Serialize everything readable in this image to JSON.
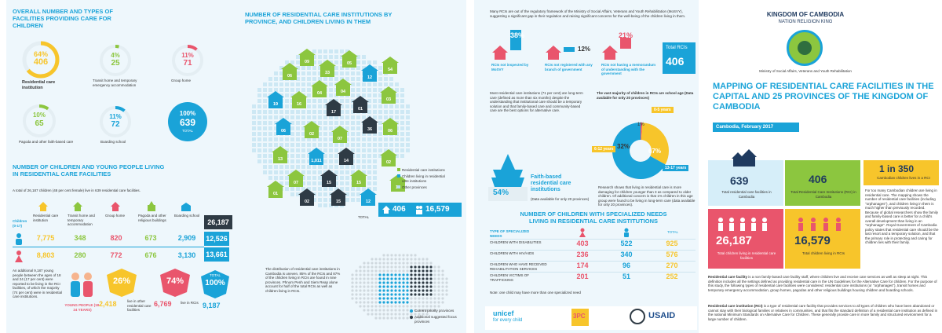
{
  "panel1": {
    "title_facilities": "OVERALL NUMBER AND TYPES OF FACILITIES PROVIDING CARE FOR CHILDREN",
    "rings": [
      {
        "pct": "64%",
        "value": "406",
        "label": "Residential care institution",
        "color": "#f7c52b",
        "fraction": 0.64
      },
      {
        "pct": "4%",
        "value": "25",
        "label": "Transit home and temporary emergency accommodation",
        "color": "#8cc63f",
        "fraction": 0.04
      },
      {
        "pct": "11%",
        "value": "71",
        "label": "Group home",
        "color": "#e9556c",
        "fraction": 0.11
      },
      {
        "pct": "10%",
        "value": "65",
        "label": "Pagoda and other faith-based care",
        "color": "#8cc63f",
        "fraction": 0.1
      },
      {
        "pct": "11%",
        "value": "72",
        "label": "Boarding school",
        "color": "#1aa3d8",
        "fraction": 0.11
      }
    ],
    "total_pct": "100%",
    "total_value": "639",
    "total_label": "TOTAL",
    "title_children": "NUMBER OF CHILDREN AND YOUNG PEOPLE LIVING IN RESIDENTIAL CARE FACILITIES",
    "intro": "A total of 26,187 children (48 per cent female) live in 639 residential care facilities.",
    "row_label_children": "Children (0-17)",
    "column_heads": [
      "Residential care institution",
      "Transit home and temporary accommodation",
      "Group home",
      "Pagoda and other religious buildings",
      "Boarding school"
    ],
    "row_boys": [
      "7,775",
      "348",
      "820",
      "673",
      "2,909"
    ],
    "row_girls": [
      "8,803",
      "280",
      "772",
      "676",
      "3,130"
    ],
    "boys_total": "12,526",
    "girls_total": "13,661",
    "grand_total": "26,187",
    "side_note": "An additional 9,187 young people between the ages of 18 and 24 (17 per cent) were reported to be living in the RCI facilities, of which the majority (74 per cent) were in residential care institutions.",
    "young_people_label": "YOUNG PEOPLE (18-24 YEARS)",
    "yp_pct_1": "26%",
    "yp_val_1": "2,418",
    "yp_lab_1": "live in other residential care facilities",
    "yp_pct_2": "74%",
    "yp_val_2": "6,769",
    "yp_lab_2": "live in RCIs",
    "yp_total_pct": "100%",
    "yp_total_val": "9,187",
    "yp_total_label": "TOTAL"
  },
  "panel2": {
    "title": "NUMBER OF RESIDENTIAL CARE INSTITUTIONS BY PROVINCE, AND CHILDREN LIVING IN THEM",
    "markers": [
      "09",
      "33",
      "06",
      "05",
      "12",
      "54",
      "04",
      "04",
      "19",
      "16",
      "17",
      "01",
      "03",
      "06",
      "02",
      "07",
      "36",
      "1,011",
      "14",
      "06",
      "13",
      "07",
      "15",
      "15",
      "02",
      "02",
      "15",
      "12",
      "13",
      "01"
    ],
    "legend": [
      "Residential care institutions",
      "Children living in residential care institutions",
      "Other provinces"
    ],
    "total_label": "TOTAL",
    "total_rci": "406",
    "total_children": "16,579",
    "note": "The distribution of residential care institutions in Cambodia is uneven. 85% of the RCIs and 87% of the children living in RCIs are found in nine provinces. Phnom Penh and Siem Reap alone account for half of the total RCIs as well as children living in RCIs.",
    "legend2": [
      "Current priority provinces",
      "Additional suggested focus provinces"
    ]
  },
  "panel3": {
    "intro": "Many RCIs are out of the regulatory framework of the Ministry of Social Affairs, Veterans and Youth Rehabilitation (MoSVY), suggesting a significant gap in their regulation and raising significant concerns for the well-being of the children living in them.",
    "stats": [
      {
        "pct": "38%",
        "label": "RCIs not inspected by MoSVY",
        "color": "#e9556c"
      },
      {
        "pct": "12%",
        "label": "RCIs not registered with any branch of government",
        "color": "#1aa3d8"
      },
      {
        "pct": "21%",
        "label": "RCIs not having a memorandum of understanding with the government",
        "color": "#e9556c"
      }
    ],
    "total_rci_label": "Total RCIs",
    "total_rci": "406",
    "text_block": "Most residential care institutions (71 per cent) are long-term care (defined as more than six months) despite the understanding that institutional care should be a temporary solution and that family-based care and community-based care are the best options for alternative care.",
    "age_title": "The vast majority of children in RCIs are school age (Data available for only 20 provinces)",
    "age_labels": [
      "0-5 years",
      "6-12 years",
      "13-17 years"
    ],
    "age_pcts": [
      "1%",
      "32%",
      "67%"
    ],
    "faith_title": "Faith-based residential care institutions",
    "faith_pct": "54%",
    "faith_sub": "(Data available for only 20 provinces)",
    "research": "Research shows that living in residential care is more damaging for children younger than 3 as compared to older children. Of additional concern is that 1% children in this age group were found to be living in long-term care (data available for only 20 provinces).",
    "needs_title": "NUMBER OF CHILDREN WITH SPECIALIZED NEEDS LIVING IN RESIDENTIAL CARE INSTITUTIONS",
    "needs_head": "TYPE OF SPECIALIZED NEEDS",
    "needs_cols": [
      "GIRLS",
      "BOYS",
      "TOTAL"
    ],
    "needs_rows": [
      {
        "label": "CHILDREN WITH DISABILITIES",
        "girls": "403",
        "boys": "522",
        "total": "925"
      },
      {
        "label": "CHILDREN WITH HIV/AIDS",
        "girls": "236",
        "boys": "340",
        "total": "576"
      },
      {
        "label": "CHILDREN WHO HAVE RECEIVED REHABILITATION SERVICES",
        "girls": "174",
        "boys": "96",
        "total": "270"
      },
      {
        "label": "CHILDREN VICTIMS OF TRAFFICKING",
        "girls": "201",
        "boys": "51",
        "total": "252"
      }
    ],
    "needs_note": "Note: one child may have more than one specialized need",
    "logos": [
      "unicef",
      "for every child",
      "3PC",
      "USAID"
    ]
  },
  "panel4": {
    "kingdom": "KINGDOM OF CAMBODIA",
    "motto": "NATION  RELIGION  KING",
    "ministry": "Ministry of Social Affairs, Veterans and Youth Rehabilitation",
    "title": "MAPPING OF RESIDENTIAL CARE FACILITIES IN THE CAPITAL AND 25 PROVINCES OF THE KINGDOM OF CAMBODIA",
    "date": "Cambodia, February 2017",
    "tile_639": "639",
    "tile_639_label": "Total residential care facilities in Cambodia",
    "tile_406": "406",
    "tile_406_label": "Total Residential Care Institutions (RCI) in Cambodia",
    "one_in": "1 in 350",
    "one_in_label": "Cambodian children lives in a RCI",
    "side_text": "For too many Cambodian children are living in residential care. The mapping shows the number of residential care facilities (including \"orphanages\"), and children living in them is much higher than previously recorded. Because of global researchers show the family and family-based care is better for a child's overall development than living in an \"orphanage\". Royal Government of Cambodia policy states that residential care should be the last resort and a temporary solution, and that the primary role in protecting and caring for children lies with their family.",
    "tile_26187": "26,187",
    "tile_26187_label": "Total children living in residential care facilities",
    "tile_16579": "16,579",
    "tile_16579_label": "Total children living in RCIs",
    "def1_term": "Residential care facility",
    "def1": " is a non family-based care facility staff, where children live and receive care services as well as sleep at night. This definition includes all the settings defined as providing residential care in the UN Guidelines for the Alternative Care for children. For the purpose of this study, the following types of residential care facilities were considered: residential care institutions (or \"orphanages\"), transit homes and temporary emergency accommodation, group homes, pagodas and other religious buildings housing children and boarding schools.",
    "def2_term": "Residential care institution (RCI)",
    "def2": " is a type of residential care facility that provides services to all types of children who have been abandoned or cannot stay with their biological families or relatives in communities, and that fits the standard definition of a residential care institution as defined in the national Minimum Standards on Alternative Care for Children. These generally provide care in more family and structured environment for a large number of children."
  }
}
